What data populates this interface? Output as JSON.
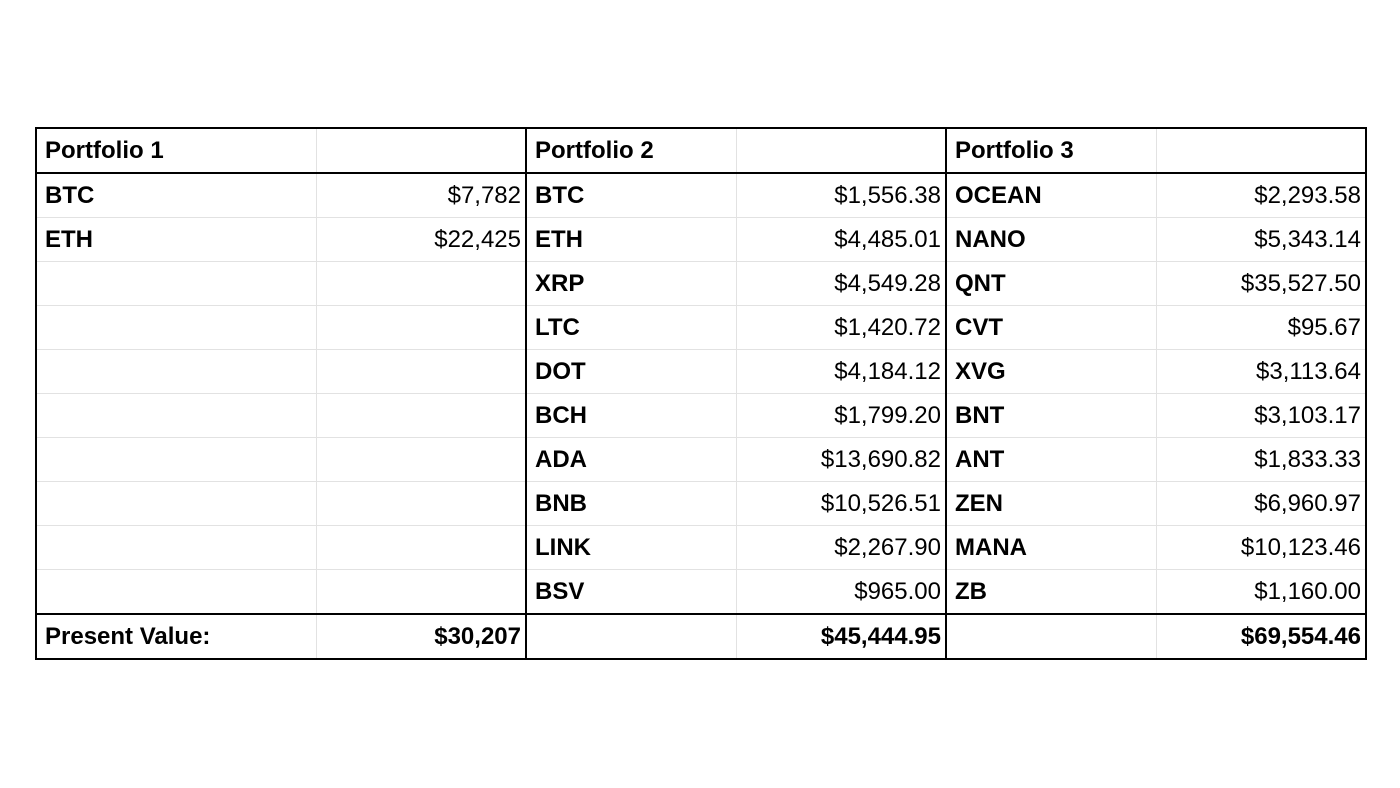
{
  "portfolios": [
    {
      "title": "Portfolio 1",
      "holdings": [
        {
          "symbol": "BTC",
          "value": "$7,782"
        },
        {
          "symbol": "ETH",
          "value": "$22,425"
        },
        {
          "symbol": "",
          "value": ""
        },
        {
          "symbol": "",
          "value": ""
        },
        {
          "symbol": "",
          "value": ""
        },
        {
          "symbol": "",
          "value": ""
        },
        {
          "symbol": "",
          "value": ""
        },
        {
          "symbol": "",
          "value": ""
        },
        {
          "symbol": "",
          "value": ""
        },
        {
          "symbol": "",
          "value": ""
        }
      ],
      "total_label": "Present Value:",
      "total": "$30,207"
    },
    {
      "title": "Portfolio 2",
      "holdings": [
        {
          "symbol": "BTC",
          "value": "$1,556.38"
        },
        {
          "symbol": "ETH",
          "value": "$4,485.01"
        },
        {
          "symbol": "XRP",
          "value": "$4,549.28"
        },
        {
          "symbol": "LTC",
          "value": "$1,420.72"
        },
        {
          "symbol": "DOT",
          "value": "$4,184.12"
        },
        {
          "symbol": "BCH",
          "value": "$1,799.20"
        },
        {
          "symbol": "ADA",
          "value": "$13,690.82"
        },
        {
          "symbol": "BNB",
          "value": "$10,526.51"
        },
        {
          "symbol": "LINK",
          "value": "$2,267.90"
        },
        {
          "symbol": "BSV",
          "value": "$965.00"
        }
      ],
      "total_label": "",
      "total": "$45,444.95"
    },
    {
      "title": "Portfolio 3",
      "holdings": [
        {
          "symbol": "OCEAN",
          "value": "$2,293.58"
        },
        {
          "symbol": "NANO",
          "value": "$5,343.14"
        },
        {
          "symbol": "QNT",
          "value": "$35,527.50"
        },
        {
          "symbol": "CVT",
          "value": "$95.67"
        },
        {
          "symbol": "XVG",
          "value": "$3,113.64"
        },
        {
          "symbol": "BNT",
          "value": "$3,103.17"
        },
        {
          "symbol": "ANT",
          "value": "$1,833.33"
        },
        {
          "symbol": "ZEN",
          "value": "$6,960.97"
        },
        {
          "symbol": "MANA",
          "value": "$10,123.46"
        },
        {
          "symbol": "ZB",
          "value": "$1,160.00"
        }
      ],
      "total_label": "",
      "total": "$69,554.46"
    }
  ]
}
